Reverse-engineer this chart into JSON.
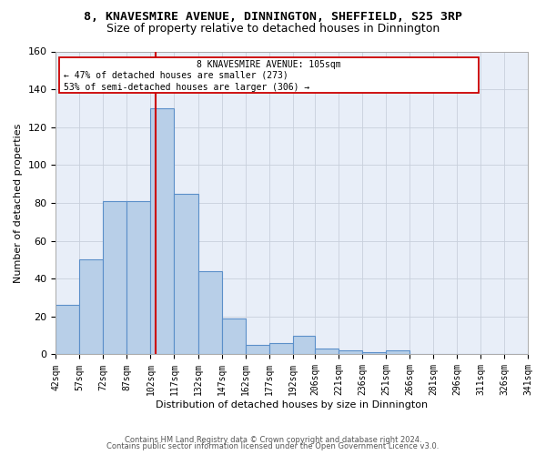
{
  "title1": "8, KNAVESMIRE AVENUE, DINNINGTON, SHEFFIELD, S25 3RP",
  "title2": "Size of property relative to detached houses in Dinnington",
  "xlabel": "Distribution of detached houses by size in Dinnington",
  "ylabel": "Number of detached properties",
  "footnote1": "Contains HM Land Registry data © Crown copyright and database right 2024.",
  "footnote2": "Contains public sector information licensed under the Open Government Licence v3.0.",
  "ann_line1": "8 KNAVESMIRE AVENUE: 105sqm",
  "ann_line2": "← 47% of detached houses are smaller (273)",
  "ann_line3": "53% of semi-detached houses are larger (306) →",
  "tick_labels": [
    "42sqm",
    "57sqm",
    "72sqm",
    "87sqm",
    "102sqm",
    "117sqm",
    "132sqm",
    "147sqm",
    "162sqm",
    "177sqm",
    "192sqm",
    "206sqm",
    "221sqm",
    "236sqm",
    "251sqm",
    "266sqm",
    "281sqm",
    "296sqm",
    "311sqm",
    "326sqm",
    "341sqm"
  ],
  "edges": [
    42,
    57,
    72,
    87,
    102,
    117,
    132,
    147,
    162,
    177,
    192,
    206,
    221,
    236,
    251,
    266,
    281,
    296,
    311,
    326,
    341
  ],
  "bar_heights": [
    26,
    50,
    81,
    81,
    130,
    85,
    44,
    19,
    5,
    6,
    10,
    3,
    2,
    1,
    2,
    0,
    0,
    0,
    0,
    0
  ],
  "bar_color": "#b8cfe8",
  "bar_edge_color": "#5b8fc9",
  "vline_x": 105,
  "vline_color": "#cc0000",
  "ann_box_color": "#cc0000",
  "ylim": [
    0,
    160
  ],
  "yticks": [
    0,
    20,
    40,
    60,
    80,
    100,
    120,
    140,
    160
  ],
  "grid_color": "#c8d0dc",
  "bg_color": "#e8eef8",
  "title1_fontsize": 9.5,
  "title2_fontsize": 9,
  "axis_fontsize": 8,
  "tick_fontsize": 7
}
